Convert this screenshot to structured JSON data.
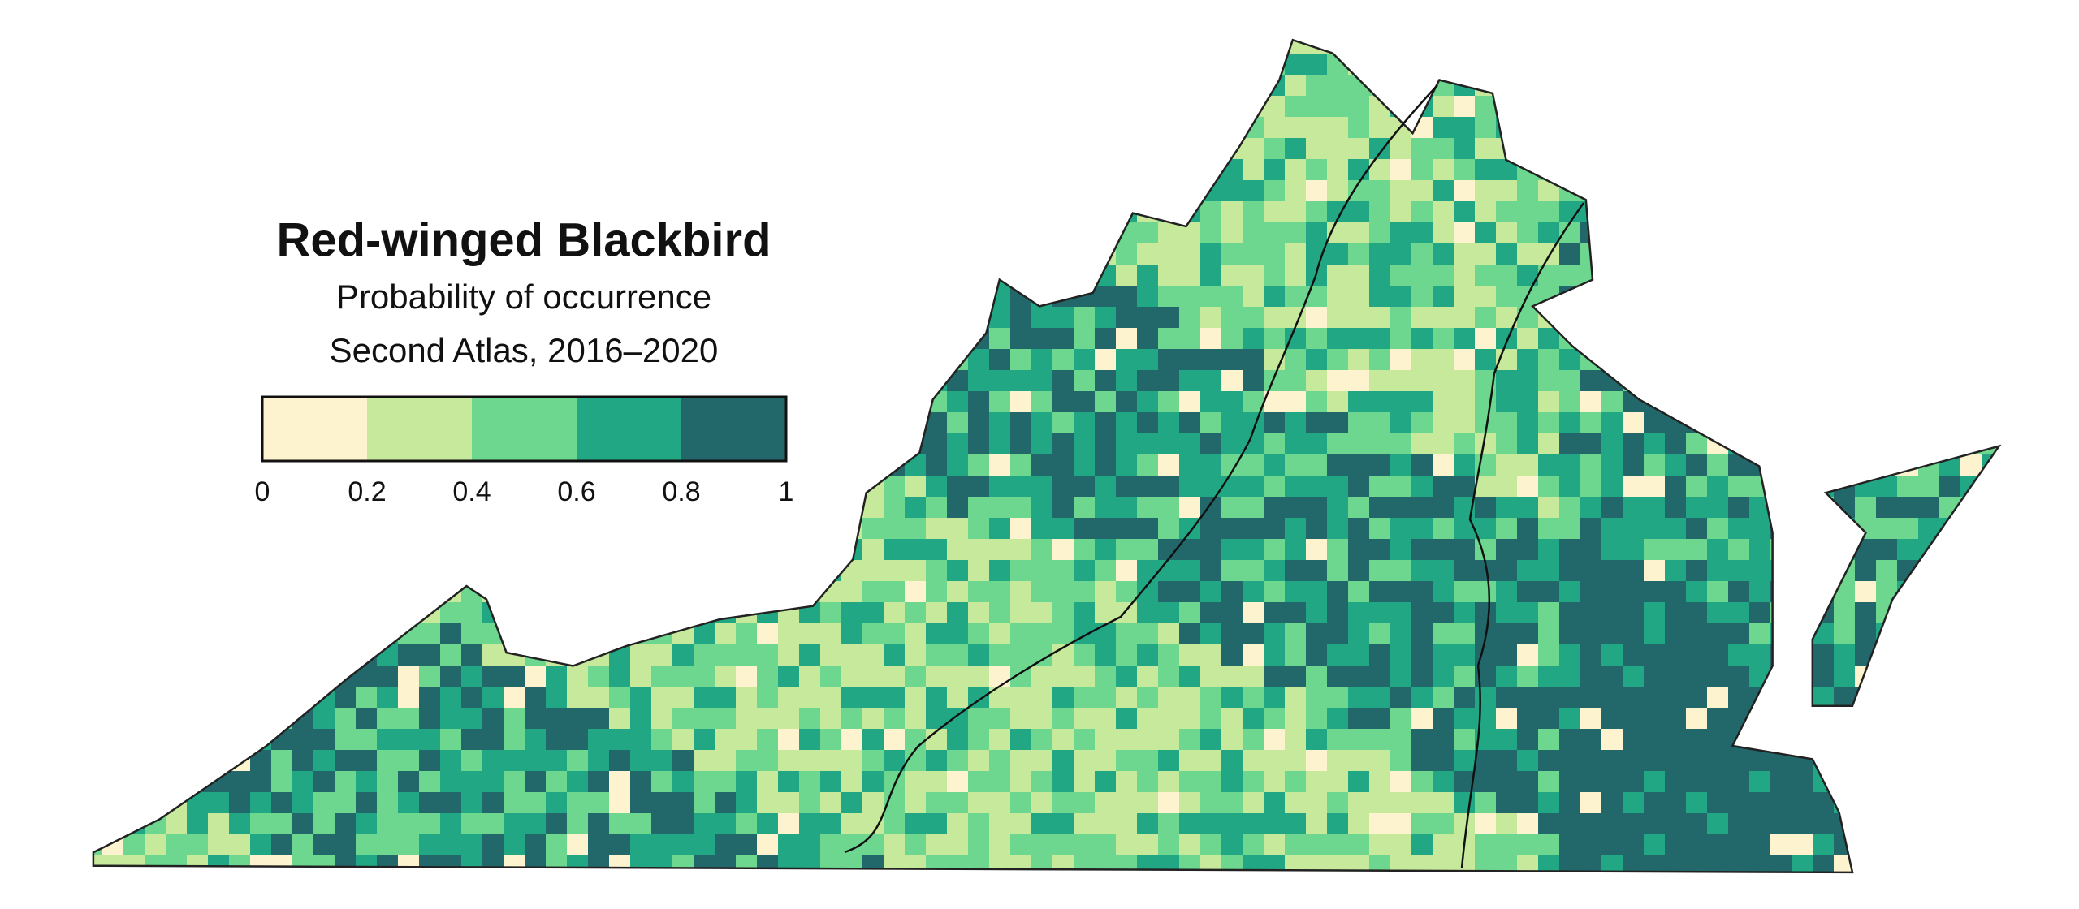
{
  "title": "Red-winged Blackbird",
  "subtitle": "Probability of occurrence",
  "subtitle2": "Second Atlas, 2016–2020",
  "legend": {
    "ticks": [
      0,
      0.2,
      0.4,
      0.6,
      0.8,
      1
    ],
    "colors": [
      "#fdf3cf",
      "#c6e99b",
      "#6dd68f",
      "#22a784",
      "#22686b"
    ]
  }
}
